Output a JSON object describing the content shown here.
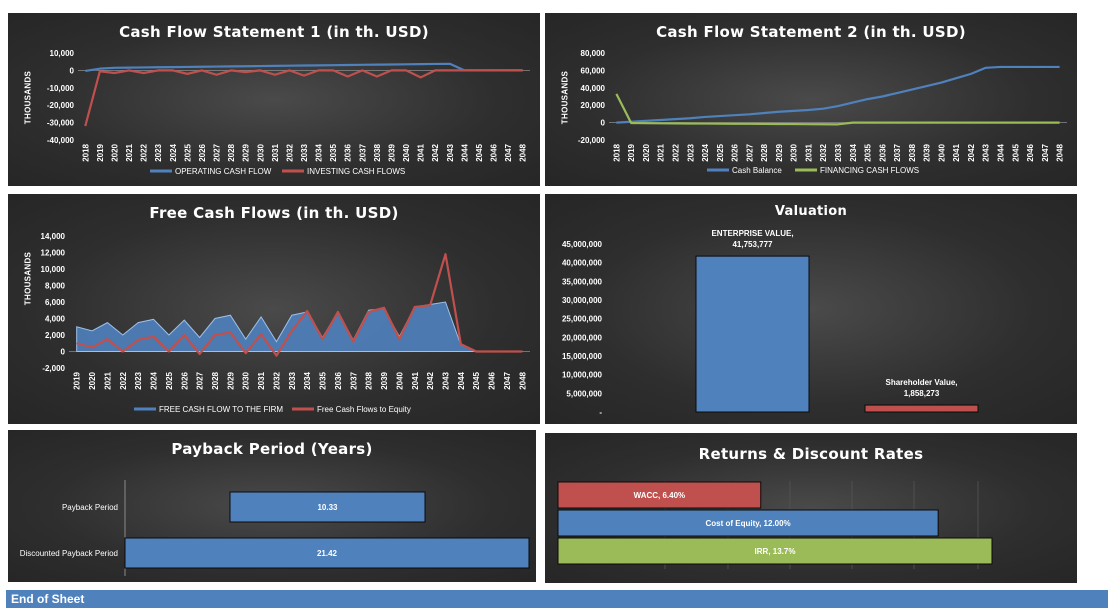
{
  "footer": {
    "label": "End of Sheet"
  },
  "colors": {
    "blue": "#4f81bd",
    "red": "#c0504d",
    "green": "#9bbb59",
    "panel": "#303030",
    "text": "#ffffff"
  },
  "chart_data": [
    {
      "id": "cf1",
      "type": "line",
      "title": "Cash Flow Statement 1 (in th. USD)",
      "ylabel": "THOUSANDS",
      "ylim": [
        -40000,
        10000
      ],
      "yticks": [
        10000,
        0,
        -10000,
        -20000,
        -30000,
        -40000
      ],
      "ytick_labels": [
        "10,000",
        "0",
        "-10,000",
        "-20,000",
        "-30,000",
        "-40,000"
      ],
      "x": [
        "2018",
        "2019",
        "2020",
        "2021",
        "2022",
        "2023",
        "2024",
        "2025",
        "2026",
        "2027",
        "2028",
        "2029",
        "2030",
        "2031",
        "2032",
        "2033",
        "2034",
        "2035",
        "2036",
        "2037",
        "2038",
        "2039",
        "2040",
        "2041",
        "2042",
        "2043",
        "2044",
        "2045",
        "2046",
        "2047",
        "2048"
      ],
      "legend_position": "bottom",
      "series": [
        {
          "name": "OPERATING CASH FLOW",
          "color": "#4f81bd",
          "values": [
            -300,
            1000,
            1500,
            1600,
            1700,
            1800,
            1900,
            2000,
            2100,
            2200,
            2300,
            2400,
            2500,
            2600,
            2700,
            2800,
            2900,
            3000,
            3100,
            3200,
            3300,
            3400,
            3500,
            3600,
            3700,
            3800,
            0,
            0,
            0,
            0,
            0
          ]
        },
        {
          "name": "INVESTING CASH FLOWS",
          "color": "#c0504d",
          "values": [
            -32000,
            -500,
            -1500,
            0,
            -1500,
            0,
            0,
            -2000,
            0,
            -2500,
            0,
            -1000,
            0,
            -2500,
            0,
            -3000,
            0,
            0,
            -3500,
            0,
            -3500,
            0,
            0,
            -4000,
            0,
            0,
            0,
            0,
            0,
            0,
            0
          ]
        }
      ]
    },
    {
      "id": "cf2",
      "type": "line",
      "title": "Cash Flow Statement 2 (in th. USD)",
      "ylabel": "THOUSANDS",
      "ylim": [
        -20000,
        80000
      ],
      "yticks": [
        80000,
        60000,
        40000,
        20000,
        0,
        -20000
      ],
      "ytick_labels": [
        "80,000",
        "60,000",
        "40,000",
        "20,000",
        "0",
        "-20,000"
      ],
      "x": [
        "2018",
        "2019",
        "2020",
        "2021",
        "2022",
        "2023",
        "2024",
        "2025",
        "2026",
        "2027",
        "2028",
        "2029",
        "2030",
        "2031",
        "2032",
        "2033",
        "2034",
        "2035",
        "2036",
        "2037",
        "2038",
        "2039",
        "2040",
        "2041",
        "2042",
        "2043",
        "2044",
        "2045",
        "2046",
        "2047",
        "2048"
      ],
      "legend_position": "bottom",
      "series": [
        {
          "name": "Cash Balance",
          "color": "#4f81bd",
          "values": [
            0,
            1000,
            2000,
            3000,
            4000,
            5000,
            6500,
            7500,
            8500,
            9500,
            11000,
            12500,
            13500,
            14500,
            16000,
            19000,
            23000,
            27000,
            30000,
            34000,
            38000,
            42000,
            46000,
            51000,
            56000,
            63000,
            64000,
            64000,
            64000,
            64000,
            64000
          ]
        },
        {
          "name": "FINANCING CASH FLOWS",
          "color": "#9bbb59",
          "values": [
            33000,
            -500,
            -700,
            -800,
            -900,
            -1000,
            -1100,
            -1200,
            -1300,
            -1400,
            -1500,
            -1600,
            -1700,
            -1800,
            -1900,
            -2000,
            0,
            0,
            0,
            0,
            0,
            0,
            0,
            0,
            0,
            0,
            0,
            0,
            0,
            0,
            0
          ]
        }
      ]
    },
    {
      "id": "fcf",
      "type": "area",
      "title": "Free Cash Flows (in th. USD)",
      "ylabel": "THOUSANDS",
      "ylim": [
        -2000,
        14000
      ],
      "yticks": [
        14000,
        12000,
        10000,
        8000,
        6000,
        4000,
        2000,
        0,
        -2000
      ],
      "ytick_labels": [
        "14,000",
        "12,000",
        "10,000",
        "8,000",
        "6,000",
        "4,000",
        "2,000",
        "0",
        "-2,000"
      ],
      "x": [
        "2019",
        "2020",
        "2021",
        "2022",
        "2023",
        "2024",
        "2025",
        "2026",
        "2027",
        "2028",
        "2029",
        "2030",
        "2031",
        "2032",
        "2033",
        "2034",
        "2035",
        "2036",
        "2037",
        "2038",
        "2039",
        "2040",
        "2041",
        "2042",
        "2043",
        "2044",
        "2045",
        "2046",
        "2047",
        "2048"
      ],
      "legend_position": "bottom",
      "series": [
        {
          "name": "FREE CASH FLOW TO THE FIRM",
          "color": "#4f81bd",
          "kind": "area",
          "values": [
            3000,
            2500,
            3500,
            2000,
            3500,
            3900,
            2000,
            3800,
            1700,
            4000,
            4400,
            1500,
            4200,
            1200,
            4400,
            4800,
            1700,
            4800,
            1400,
            5000,
            5200,
            1800,
            5400,
            5700,
            6000,
            800,
            0,
            0,
            0,
            0
          ]
        },
        {
          "name": "Free Cash Flows to Equity",
          "color": "#c0504d",
          "kind": "line",
          "values": [
            1000,
            500,
            1500,
            0,
            1400,
            1800,
            0,
            2000,
            -300,
            2000,
            2300,
            -200,
            2100,
            -500,
            2500,
            4900,
            1500,
            4800,
            1200,
            4800,
            5300,
            1500,
            5400,
            5600,
            11800,
            900,
            0,
            0,
            0,
            0
          ]
        }
      ]
    },
    {
      "id": "valuation",
      "type": "bar",
      "title": "Valuation",
      "ylim": [
        0,
        45000000
      ],
      "yticks": [
        45000000,
        40000000,
        35000000,
        30000000,
        25000000,
        20000000,
        15000000,
        10000000,
        5000000,
        0
      ],
      "ytick_labels": [
        "45,000,000",
        "40,000,000",
        "35,000,000",
        "30,000,000",
        "25,000,000",
        "20,000,000",
        "15,000,000",
        "10,000,000",
        "5,000,000",
        "-"
      ],
      "categories": [
        "ENTERPRISE VALUE",
        "Shareholder Value"
      ],
      "values": [
        41753777,
        1858273
      ],
      "data_labels": [
        [
          "ENTERPRISE VALUE,",
          "41,753,777"
        ],
        [
          "Shareholder Value,",
          "1,858,273"
        ]
      ],
      "colors": [
        "#4f81bd",
        "#c0504d"
      ]
    },
    {
      "id": "payback",
      "type": "bar",
      "orientation": "horizontal",
      "title": "Payback Period (Years)",
      "categories": [
        "Payback Period",
        "Discounted Payback Period"
      ],
      "values": [
        10.33,
        21.42
      ],
      "data_labels": [
        "10.33",
        "21.42"
      ],
      "colors": [
        "#4f81bd",
        "#4f81bd"
      ]
    },
    {
      "id": "returns",
      "type": "bar",
      "orientation": "horizontal",
      "title": "Returns & Discount Rates",
      "categories": [
        "WACC",
        "Cost of Equity",
        "IRR"
      ],
      "values": [
        6.4,
        12.0,
        13.7
      ],
      "data_labels": [
        "WACC, 6.40%",
        "Cost of Equity, 12.00%",
        "IRR, 13.7%"
      ],
      "colors": [
        "#c0504d",
        "#4f81bd",
        "#9bbb59"
      ]
    }
  ]
}
